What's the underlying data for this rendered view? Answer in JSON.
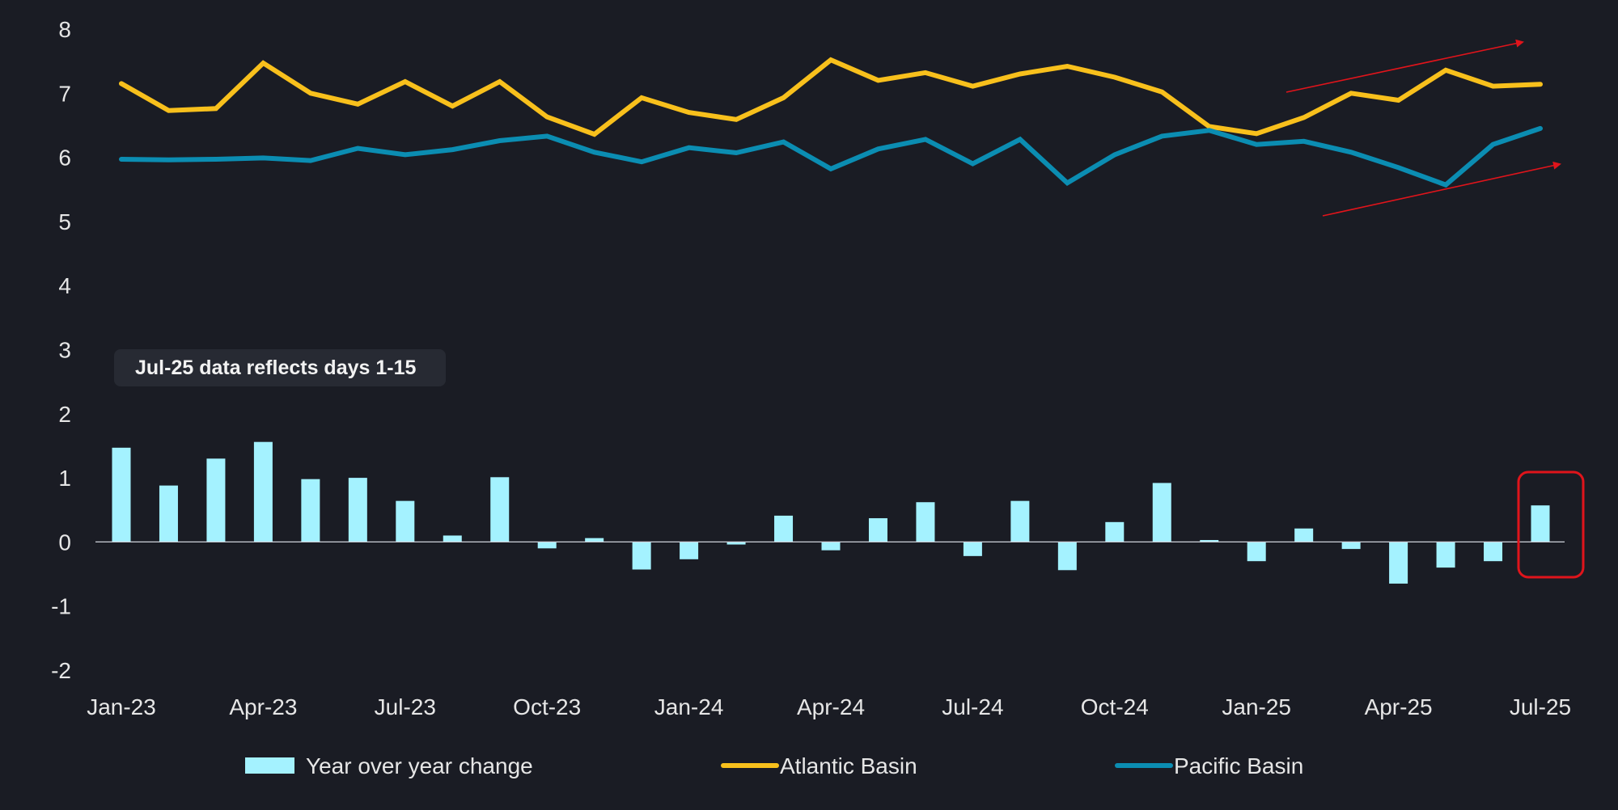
{
  "chart_data": {
    "type": "bar",
    "title": "",
    "xlabel": "",
    "ylabel": "",
    "ylim": [
      -2,
      8
    ],
    "yticks": [
      -2,
      -1,
      0,
      1,
      2,
      3,
      4,
      5,
      6,
      7,
      8
    ],
    "grid": false,
    "legend_position": "bottom",
    "categories": [
      "Jan-23",
      "Feb-23",
      "Mar-23",
      "Apr-23",
      "May-23",
      "Jun-23",
      "Jul-23",
      "Aug-23",
      "Sep-23",
      "Oct-23",
      "Nov-23",
      "Dec-23",
      "Jan-24",
      "Feb-24",
      "Mar-24",
      "Apr-24",
      "May-24",
      "Jun-24",
      "Jul-24",
      "Aug-24",
      "Sep-24",
      "Oct-24",
      "Nov-24",
      "Dec-24",
      "Jan-25",
      "Feb-25",
      "Mar-25",
      "Apr-25",
      "May-25",
      "Jun-25",
      "Jul-25"
    ],
    "x_tick_labels": [
      "Jan-23",
      "Apr-23",
      "Jul-23",
      "Oct-23",
      "Jan-24",
      "Apr-24",
      "Jul-24",
      "Oct-24",
      "Jan-25",
      "Apr-25",
      "Jul-25"
    ],
    "series": [
      {
        "name": "Year over year change",
        "type": "bar",
        "color": "#a4f2ff",
        "values": [
          1.47,
          0.88,
          1.3,
          1.56,
          0.98,
          1.0,
          0.64,
          0.1,
          1.01,
          -0.1,
          0.06,
          -0.43,
          -0.27,
          -0.04,
          0.41,
          -0.13,
          0.37,
          0.62,
          -0.22,
          0.64,
          -0.44,
          0.31,
          0.92,
          0.03,
          -0.3,
          0.21,
          -0.11,
          -0.65,
          -0.4,
          -0.3,
          0.57
        ]
      },
      {
        "name": "Atlantic Basin",
        "type": "line",
        "color": "#f8c01c",
        "values": [
          7.15,
          6.73,
          6.76,
          7.47,
          7.0,
          6.83,
          7.18,
          6.8,
          7.18,
          6.63,
          6.36,
          6.93,
          6.7,
          6.59,
          6.93,
          7.52,
          7.2,
          7.32,
          7.11,
          7.3,
          7.42,
          7.25,
          7.02,
          6.48,
          6.37,
          6.62,
          7.0,
          6.89,
          7.36,
          7.11,
          7.14
        ]
      },
      {
        "name": "Pacific Basin",
        "type": "line",
        "color": "#0b8db2",
        "values": [
          5.97,
          5.96,
          5.97,
          5.99,
          5.95,
          6.14,
          6.04,
          6.12,
          6.26,
          6.33,
          6.08,
          5.93,
          6.15,
          6.07,
          6.24,
          5.82,
          6.13,
          6.28,
          5.9,
          6.28,
          5.6,
          6.04,
          6.33,
          6.42,
          6.2,
          6.25,
          6.08,
          5.84,
          5.57,
          6.2,
          6.45
        ]
      }
    ],
    "annotations": {
      "note": "Jul-25 data reflects days 1-15",
      "highlight_category": "Jul-25",
      "highlight_color": "#e0141b",
      "trend_arrow_color": "#e0141b"
    }
  },
  "legend": {
    "items": [
      {
        "label": "Year over year change",
        "kind": "bar",
        "color": "#a4f2ff"
      },
      {
        "label": "Atlantic Basin",
        "kind": "line",
        "color": "#f8c01c"
      },
      {
        "label": "Pacific Basin",
        "kind": "line",
        "color": "#0b8db2"
      }
    ]
  },
  "colors": {
    "background": "#1a1c24",
    "note_box": "#272a33",
    "zero_line": "#cfd3da",
    "text": "#e6e6e6"
  }
}
